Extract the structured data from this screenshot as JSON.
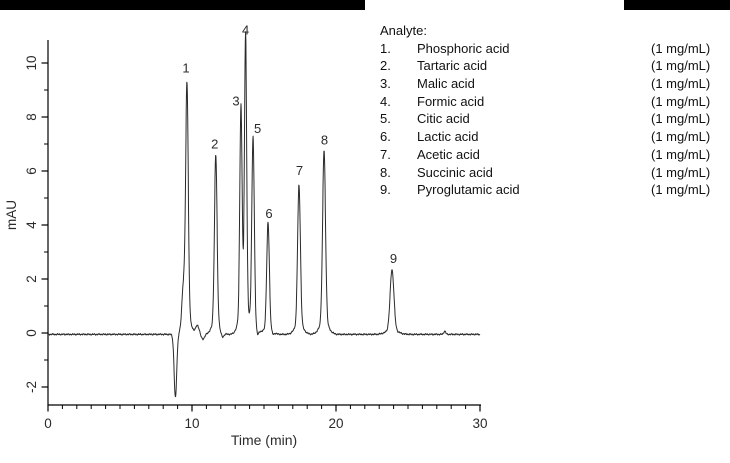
{
  "figure": {
    "background": "#ffffff",
    "bar_color": "#000000",
    "trace_color": "#2a2a2a",
    "axis_color": "#000000",
    "text_color": "#2b2b2b"
  },
  "legend": {
    "title": "Analyte:",
    "items": [
      {
        "num": "1.",
        "name": "Phosphoric acid",
        "conc": "(1 mg/mL)"
      },
      {
        "num": "2.",
        "name": "Tartaric acid",
        "conc": "(1 mg/mL)"
      },
      {
        "num": "3.",
        "name": "Malic acid",
        "conc": "(1 mg/mL)"
      },
      {
        "num": "4.",
        "name": "Formic acid",
        "conc": "(1 mg/mL)"
      },
      {
        "num": "5.",
        "name": "Citic acid",
        "conc": "(1 mg/mL)"
      },
      {
        "num": "6.",
        "name": "Lactic acid",
        "conc": "(1 mg/mL)"
      },
      {
        "num": "7.",
        "name": "Acetic acid",
        "conc": "(1 mg/mL)"
      },
      {
        "num": "8.",
        "name": "Succinic acid",
        "conc": "(1 mg/mL)"
      },
      {
        "num": "9.",
        "name": "Pyroglutamic acid",
        "conc": "(1 mg/mL)"
      }
    ]
  },
  "chart_data": {
    "type": "line",
    "title": "",
    "xlabel": "Time (min)",
    "ylabel": "mAU",
    "xlim": [
      0,
      30
    ],
    "ylim": [
      -2.67,
      10.85
    ],
    "x_major_ticks": [
      0,
      10,
      20,
      30
    ],
    "x_minor_step": 1,
    "y_major_ticks": [
      -2,
      0,
      2,
      4,
      6,
      8,
      10
    ],
    "y_minor_ticks": [
      -1,
      1,
      3,
      5,
      7,
      9
    ],
    "grid": false,
    "legend_position": "outside-right",
    "peaks": [
      {
        "label": "1",
        "analyte": "Phosphoric acid",
        "time_min": 9.65,
        "height_mau": 9.3,
        "sigma_min": 0.09,
        "label_dx": -1,
        "label_dy": -9.5
      },
      {
        "label": "2",
        "analyte": "Tartaric acid",
        "time_min": 11.65,
        "height_mau": 6.65,
        "sigma_min": 0.09,
        "label_dx": -1,
        "label_dy": -5
      },
      {
        "label": "3",
        "analyte": "Malic acid",
        "time_min": 13.4,
        "height_mau": 8.25,
        "sigma_min": 0.08,
        "label_dx": -5,
        "label_dy": -5
      },
      {
        "label": "4",
        "analyte": "Formic acid",
        "time_min": 13.72,
        "height_mau": 10.9,
        "sigma_min": 0.075,
        "label_dx": 0,
        "label_dy": -4
      },
      {
        "label": "5",
        "analyte": "Citic acid",
        "time_min": 14.24,
        "height_mau": 7.3,
        "sigma_min": 0.085,
        "label_dx": 4.5,
        "label_dy": -3
      },
      {
        "label": "6",
        "analyte": "Lactic acid",
        "time_min": 15.28,
        "height_mau": 4.15,
        "sigma_min": 0.09,
        "label_dx": 1,
        "label_dy": -3
      },
      {
        "label": "7",
        "analyte": "Acetic acid",
        "time_min": 17.43,
        "height_mau": 5.55,
        "sigma_min": 0.095,
        "label_dx": 0.5,
        "label_dy": -8
      },
      {
        "label": "8",
        "analyte": "Succinic acid",
        "time_min": 19.17,
        "height_mau": 6.8,
        "sigma_min": 0.1,
        "label_dx": 0.5,
        "label_dy": -5
      },
      {
        "label": "9",
        "analyte": "Pyroglutamic acid",
        "time_min": 23.89,
        "height_mau": 2.4,
        "sigma_min": 0.13,
        "label_dx": 1.5,
        "label_dy": -5
      }
    ],
    "baseline_features": [
      {
        "name": "injection-dip",
        "time_min": 8.85,
        "amp_mau": -2.35,
        "sigma_min": 0.09
      },
      {
        "name": "peak1-shoulder",
        "time_min": 9.4,
        "amp_mau": 1.45,
        "sigma_min": 0.1
      },
      {
        "name": "post-peak1-bump",
        "time_min": 10.38,
        "amp_mau": 0.32,
        "sigma_min": 0.12
      },
      {
        "name": "post-bump-dip",
        "time_min": 10.75,
        "amp_mau": -0.18,
        "sigma_min": 0.12
      },
      {
        "name": "post-peak2-dip",
        "time_min": 12.1,
        "amp_mau": -0.2,
        "sigma_min": 0.1
      },
      {
        "name": "post-peak5-dip",
        "time_min": 14.55,
        "amp_mau": -0.25,
        "sigma_min": 0.07
      },
      {
        "name": "post-peak6-dip",
        "time_min": 15.62,
        "amp_mau": -0.12,
        "sigma_min": 0.08
      },
      {
        "name": "late-baseline-blip",
        "time_min": 27.55,
        "amp_mau": 0.12,
        "sigma_min": 0.07
      }
    ],
    "baseline_offset_mau": -0.05,
    "noise_mau": 0.035
  }
}
